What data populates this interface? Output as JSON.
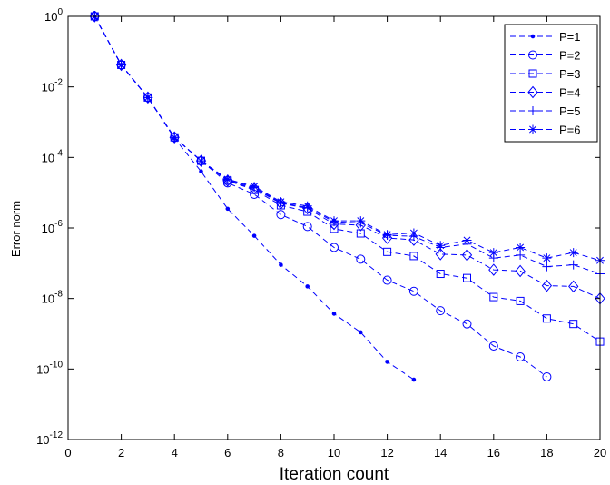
{
  "chart_data": {
    "type": "line",
    "title": "",
    "xlabel": "Iteration count",
    "ylabel": "Error norm",
    "xlim": [
      0,
      20
    ],
    "ylim": [
      1e-12,
      1
    ],
    "yscale": "log",
    "grid": false,
    "legend_position": "top-right",
    "x_ticks": [
      "0",
      "2",
      "4",
      "6",
      "8",
      "10",
      "12",
      "14",
      "16",
      "18",
      "20"
    ],
    "y_ticks": [
      {
        "base": "10",
        "exp": "0"
      },
      {
        "base": "10",
        "exp": "-2"
      },
      {
        "base": "10",
        "exp": "-4"
      },
      {
        "base": "10",
        "exp": "-6"
      },
      {
        "base": "10",
        "exp": "-8"
      },
      {
        "base": "10",
        "exp": "-10"
      },
      {
        "base": "10",
        "exp": "-12"
      }
    ],
    "series_color": "#0000ff",
    "series": [
      {
        "name": "P=1",
        "marker": "point",
        "x": [
          1,
          2,
          3,
          4,
          5,
          6,
          7,
          8,
          9,
          10,
          11,
          12,
          13
        ],
        "y": [
          1.0,
          0.042,
          0.005,
          0.00035,
          4e-05,
          3.5e-06,
          6e-07,
          9e-08,
          2.2e-08,
          3.7e-09,
          1.1e-09,
          1.6e-10,
          5e-11
        ]
      },
      {
        "name": "P=2",
        "marker": "circle",
        "x": [
          1,
          2,
          3,
          4,
          5,
          6,
          7,
          8,
          9,
          10,
          11,
          12,
          13,
          14,
          15,
          16,
          17,
          18
        ],
        "y": [
          1.0,
          0.042,
          0.005,
          0.00037,
          8e-05,
          1.9e-05,
          9e-06,
          2.4e-06,
          1.1e-06,
          2.8e-07,
          1.3e-07,
          3.3e-08,
          1.6e-08,
          4.5e-09,
          1.9e-09,
          4.5e-10,
          2.2e-10,
          6e-11
        ]
      },
      {
        "name": "P=3",
        "marker": "square",
        "x": [
          1,
          2,
          3,
          4,
          5,
          6,
          7,
          8,
          9,
          10,
          11,
          12,
          13,
          14,
          15,
          16,
          17,
          18,
          19,
          20
        ],
        "y": [
          1.0,
          0.042,
          0.005,
          0.00037,
          8e-05,
          2.2e-05,
          1.2e-05,
          4.4e-06,
          2.9e-06,
          9.5e-07,
          7e-07,
          2.1e-07,
          1.6e-07,
          5e-08,
          3.8e-08,
          1.1e-08,
          8.5e-09,
          2.7e-09,
          1.9e-09,
          6e-10
        ]
      },
      {
        "name": "P=4",
        "marker": "diamond",
        "x": [
          1,
          2,
          3,
          4,
          5,
          6,
          7,
          8,
          9,
          10,
          11,
          12,
          13,
          14,
          15,
          16,
          17,
          18,
          19,
          20
        ],
        "y": [
          1.0,
          0.042,
          0.005,
          0.00037,
          8e-05,
          2.2e-05,
          1.3e-05,
          5e-06,
          3.6e-06,
          1.3e-06,
          1.2e-06,
          5.2e-07,
          4.6e-07,
          1.8e-07,
          1.7e-07,
          6.5e-08,
          6e-08,
          2.3e-08,
          2.2e-08,
          1e-08
        ]
      },
      {
        "name": "P=5",
        "marker": "plus",
        "x": [
          1,
          2,
          3,
          4,
          5,
          6,
          7,
          8,
          9,
          10,
          11,
          12,
          13,
          14,
          15,
          16,
          17,
          18,
          19,
          20
        ],
        "y": [
          1.0,
          0.042,
          0.005,
          0.00037,
          8e-05,
          2.3e-05,
          1.4e-05,
          5.2e-06,
          3.8e-06,
          1.5e-06,
          1.4e-06,
          6.2e-07,
          5.8e-07,
          2.8e-07,
          3.5e-07,
          1.4e-07,
          1.7e-07,
          8e-08,
          9e-08,
          5e-08
        ]
      },
      {
        "name": "P=6",
        "marker": "asterisk",
        "x": [
          1,
          2,
          3,
          4,
          5,
          6,
          7,
          8,
          9,
          10,
          11,
          12,
          13,
          14,
          15,
          16,
          17,
          18,
          19,
          20
        ],
        "y": [
          1.0,
          0.042,
          0.005,
          0.00037,
          8e-05,
          2.4e-05,
          1.5e-05,
          5.5e-06,
          4.2e-06,
          1.6e-06,
          1.6e-06,
          6.5e-07,
          7.2e-07,
          3.2e-07,
          4.5e-07,
          2e-07,
          2.8e-07,
          1.4e-07,
          2e-07,
          1.2e-07
        ]
      }
    ]
  }
}
